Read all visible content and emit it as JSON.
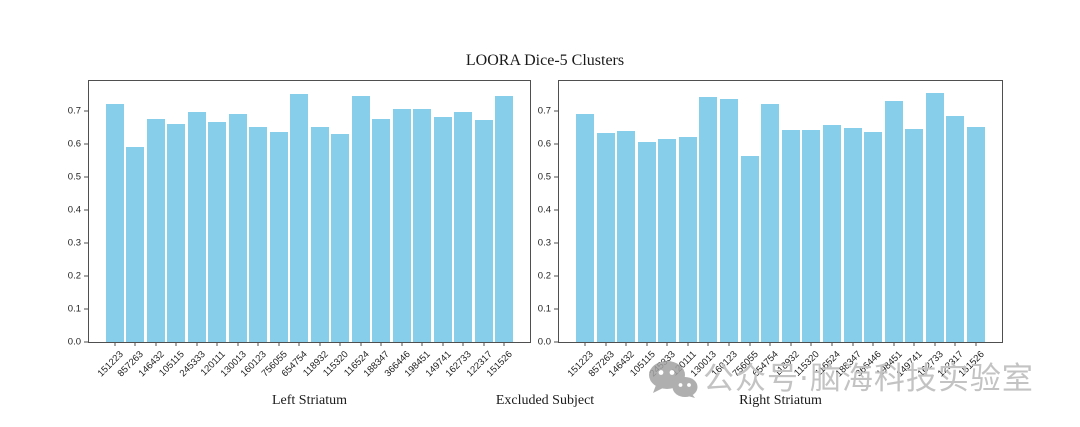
{
  "title": "LOORA Dice-5 Clusters",
  "xlabel": "Excluded Subject",
  "watermark": {
    "text": "公众号·脑海科技实验室",
    "icon": "wechat-icon",
    "color": "#c3c3c3",
    "icon_color": "#a2a2a2"
  },
  "colors": {
    "bar": "#87CEEB",
    "axis_frame": "#4f4f4f",
    "text": "#1a1a1a"
  },
  "chart_data": [
    {
      "type": "bar",
      "name": "Left Striatum",
      "categories": [
        "151223",
        "857263",
        "146432",
        "105115",
        "245333",
        "120111",
        "130013",
        "160123",
        "756055",
        "654754",
        "118932",
        "115320",
        "116524",
        "188347",
        "366446",
        "198451",
        "149741",
        "162733",
        "122317",
        "151526"
      ],
      "values": [
        0.72,
        0.59,
        0.675,
        0.66,
        0.695,
        0.665,
        0.69,
        0.65,
        0.637,
        0.75,
        0.65,
        0.63,
        0.745,
        0.675,
        0.705,
        0.705,
        0.68,
        0.697,
        0.672,
        0.745
      ],
      "xlabel": "Excluded Subject",
      "ylabel": "",
      "ylim": [
        0.0,
        0.79
      ],
      "yticks": [
        0.0,
        0.1,
        0.2,
        0.3,
        0.4,
        0.5,
        0.6,
        0.7
      ],
      "grid": false,
      "bar_color": "#87CEEB"
    },
    {
      "type": "bar",
      "name": "Right Striatum",
      "categories": [
        "151223",
        "857263",
        "146432",
        "105115",
        "245333",
        "120111",
        "130013",
        "160123",
        "756055",
        "654754",
        "118932",
        "115320",
        "116524",
        "188347",
        "366446",
        "198451",
        "149741",
        "162733",
        "122317",
        "151526"
      ],
      "values": [
        0.69,
        0.633,
        0.638,
        0.605,
        0.615,
        0.62,
        0.743,
        0.736,
        0.564,
        0.72,
        0.643,
        0.643,
        0.658,
        0.647,
        0.637,
        0.728,
        0.645,
        0.755,
        0.685,
        0.652
      ],
      "xlabel": "Excluded Subject",
      "ylabel": "",
      "ylim": [
        0.0,
        0.79
      ],
      "yticks": [
        0.0,
        0.1,
        0.2,
        0.3,
        0.4,
        0.5,
        0.6,
        0.7
      ],
      "grid": false,
      "bar_color": "#87CEEB"
    }
  ]
}
